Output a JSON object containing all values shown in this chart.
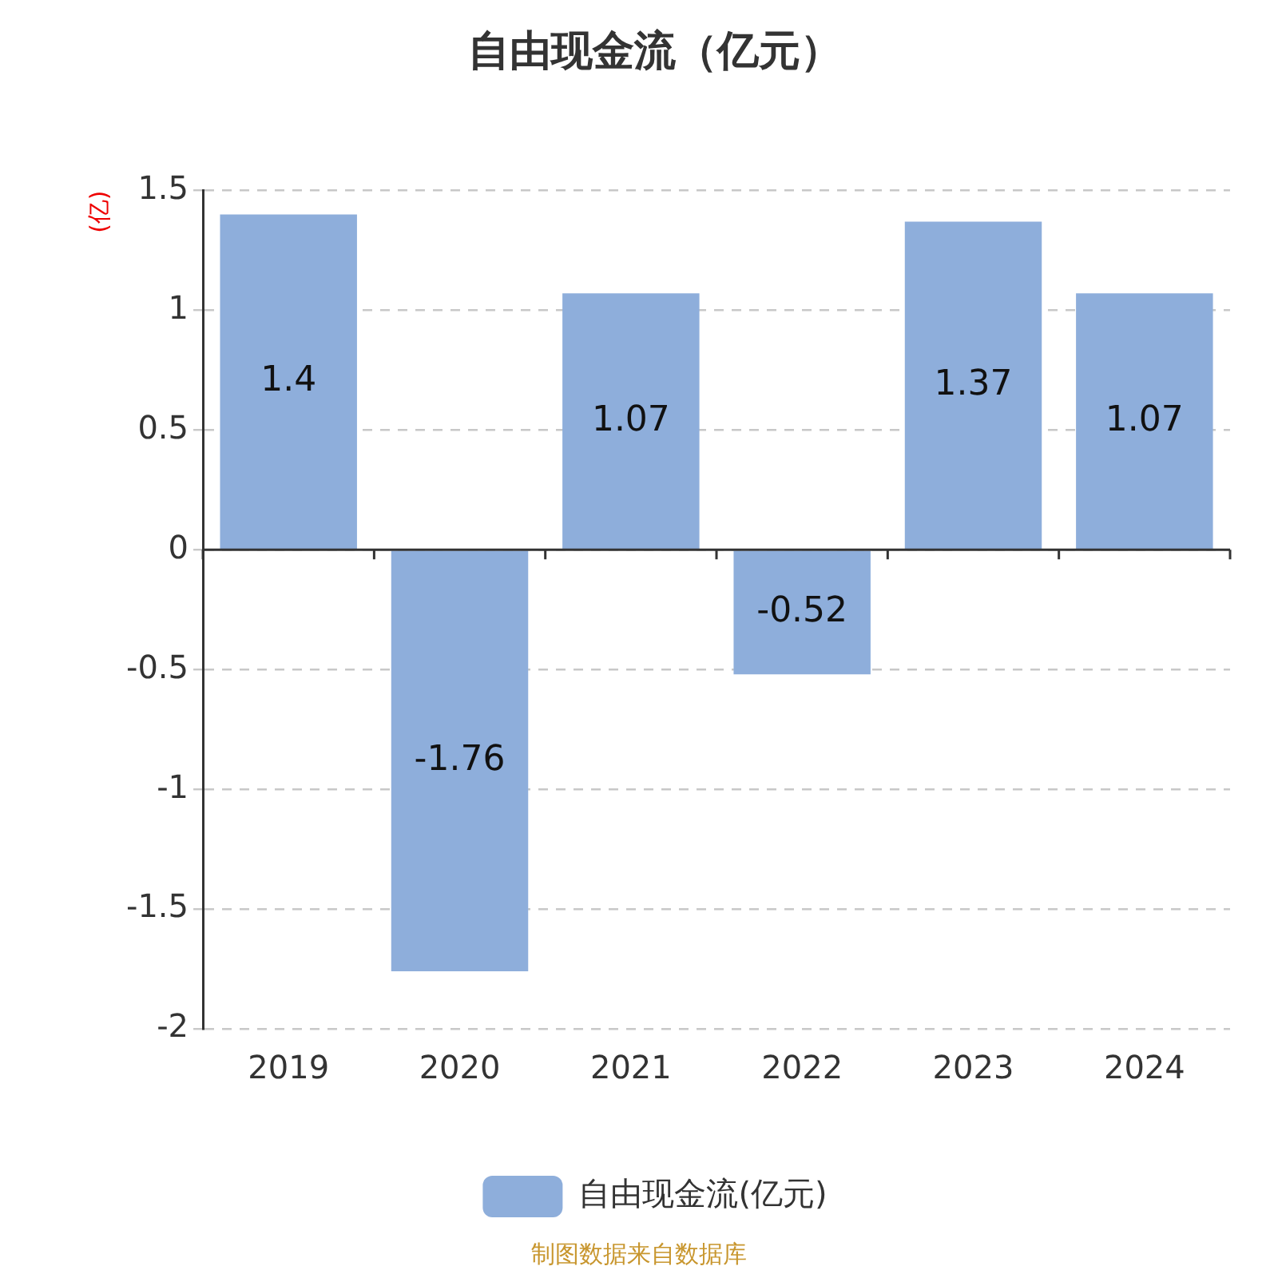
{
  "chart_data": {
    "type": "bar",
    "title": "自由现金流（亿元）",
    "ylabel": "(亿)",
    "categories": [
      "2019",
      "2020",
      "2021",
      "2022",
      "2023",
      "2024"
    ],
    "series": [
      {
        "name": "自由现金流(亿元)",
        "color": "#8eaedb",
        "values": [
          1.4,
          -1.76,
          1.07,
          -0.52,
          1.37,
          1.07
        ]
      }
    ],
    "ylim": [
      -2,
      1.5
    ],
    "yticks": [
      -2,
      -1.5,
      -1,
      -0.5,
      0,
      0.5,
      1,
      1.5
    ],
    "grid": "y",
    "legend": "bottom",
    "data_labels": true,
    "annotations": [
      "制图数据来自数据库"
    ]
  }
}
